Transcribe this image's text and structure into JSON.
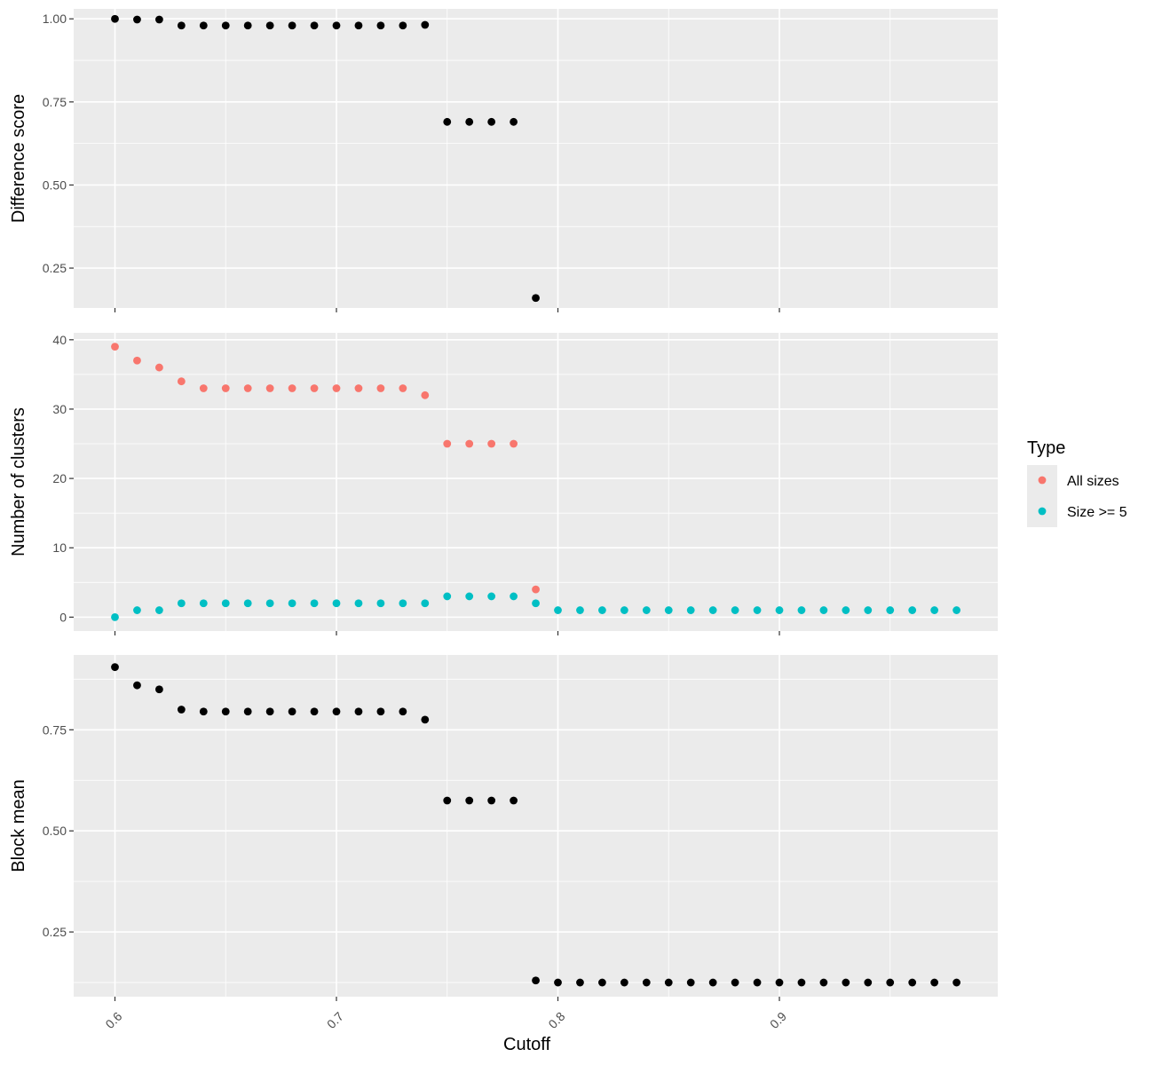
{
  "chart_data": [
    {
      "type": "scatter",
      "ylabel": "Difference score",
      "xlabel": "",
      "ylim": [
        0.13,
        1.03
      ],
      "yticks": [
        0.25,
        0.5,
        0.75,
        1.0
      ],
      "ytick_labels": [
        "0.25",
        "0.50",
        "0.75",
        "1.00"
      ],
      "grid": true,
      "color": "#000000",
      "x": [
        0.6,
        0.61,
        0.62,
        0.63,
        0.64,
        0.65,
        0.66,
        0.67,
        0.68,
        0.69,
        0.7,
        0.71,
        0.72,
        0.73,
        0.74,
        0.75,
        0.76,
        0.77,
        0.78,
        0.79
      ],
      "y": [
        1.0,
        0.998,
        0.998,
        0.98,
        0.98,
        0.98,
        0.98,
        0.98,
        0.98,
        0.98,
        0.98,
        0.98,
        0.98,
        0.98,
        0.982,
        0.69,
        0.69,
        0.69,
        0.69,
        0.16
      ]
    },
    {
      "type": "scatter",
      "ylabel": "Number of clusters",
      "xlabel": "",
      "ylim": [
        -2,
        41
      ],
      "yticks": [
        0,
        10,
        20,
        30,
        40
      ],
      "ytick_labels": [
        "0",
        "10",
        "20",
        "30",
        "40"
      ],
      "grid": true,
      "legend": {
        "title": "Type",
        "entries": [
          "All sizes",
          "Size >= 5"
        ],
        "placement": "right"
      },
      "series": [
        {
          "name": "All sizes",
          "color": "#F8766D",
          "x": [
            0.6,
            0.61,
            0.62,
            0.63,
            0.64,
            0.65,
            0.66,
            0.67,
            0.68,
            0.69,
            0.7,
            0.71,
            0.72,
            0.73,
            0.74,
            0.75,
            0.76,
            0.77,
            0.78,
            0.79
          ],
          "y": [
            39,
            37,
            36,
            34,
            33,
            33,
            33,
            33,
            33,
            33,
            33,
            33,
            33,
            33,
            32,
            25,
            25,
            25,
            25,
            4
          ]
        },
        {
          "name": "Size >= 5",
          "color": "#00BFC4",
          "x": [
            0.6,
            0.61,
            0.62,
            0.63,
            0.64,
            0.65,
            0.66,
            0.67,
            0.68,
            0.69,
            0.7,
            0.71,
            0.72,
            0.73,
            0.74,
            0.75,
            0.76,
            0.77,
            0.78,
            0.79,
            0.8,
            0.81,
            0.82,
            0.83,
            0.84,
            0.85,
            0.86,
            0.87,
            0.88,
            0.89,
            0.9,
            0.91,
            0.92,
            0.93,
            0.94,
            0.95,
            0.96,
            0.97,
            0.98
          ],
          "y": [
            0,
            1,
            1,
            2,
            2,
            2,
            2,
            2,
            2,
            2,
            2,
            2,
            2,
            2,
            2,
            3,
            3,
            3,
            3,
            2,
            1,
            1,
            1,
            1,
            1,
            1,
            1,
            1,
            1,
            1,
            1,
            1,
            1,
            1,
            1,
            1,
            1,
            1,
            1
          ]
        }
      ]
    },
    {
      "type": "scatter",
      "ylabel": "Block mean",
      "xlabel": "Cutoff",
      "ylim": [
        0.09,
        0.935
      ],
      "yticks": [
        0.25,
        0.5,
        0.75
      ],
      "ytick_labels": [
        "0.25",
        "0.50",
        "0.75"
      ],
      "xticks": [
        0.6,
        0.7,
        0.8,
        0.9
      ],
      "xtick_labels": [
        "0.6",
        "0.7",
        "0.8",
        "0.9"
      ],
      "grid": true,
      "color": "#000000",
      "x": [
        0.6,
        0.61,
        0.62,
        0.63,
        0.64,
        0.65,
        0.66,
        0.67,
        0.68,
        0.69,
        0.7,
        0.71,
        0.72,
        0.73,
        0.74,
        0.75,
        0.76,
        0.77,
        0.78,
        0.79,
        0.8,
        0.81,
        0.82,
        0.83,
        0.84,
        0.85,
        0.86,
        0.87,
        0.88,
        0.89,
        0.9,
        0.91,
        0.92,
        0.93,
        0.94,
        0.95,
        0.96,
        0.97,
        0.98
      ],
      "y": [
        0.905,
        0.86,
        0.85,
        0.8,
        0.795,
        0.795,
        0.795,
        0.795,
        0.795,
        0.795,
        0.795,
        0.795,
        0.795,
        0.795,
        0.775,
        0.575,
        0.575,
        0.575,
        0.575,
        0.13,
        0.125,
        0.125,
        0.125,
        0.125,
        0.125,
        0.125,
        0.125,
        0.125,
        0.125,
        0.125,
        0.125,
        0.125,
        0.125,
        0.125,
        0.125,
        0.125,
        0.125,
        0.125,
        0.125
      ]
    }
  ],
  "shared_x": {
    "xlim": [
      0.582,
      0.9985
    ],
    "xticks": [
      0.6,
      0.7,
      0.8,
      0.9
    ],
    "xtick_labels": [
      "0.6",
      "0.7",
      "0.8",
      "0.9"
    ]
  }
}
